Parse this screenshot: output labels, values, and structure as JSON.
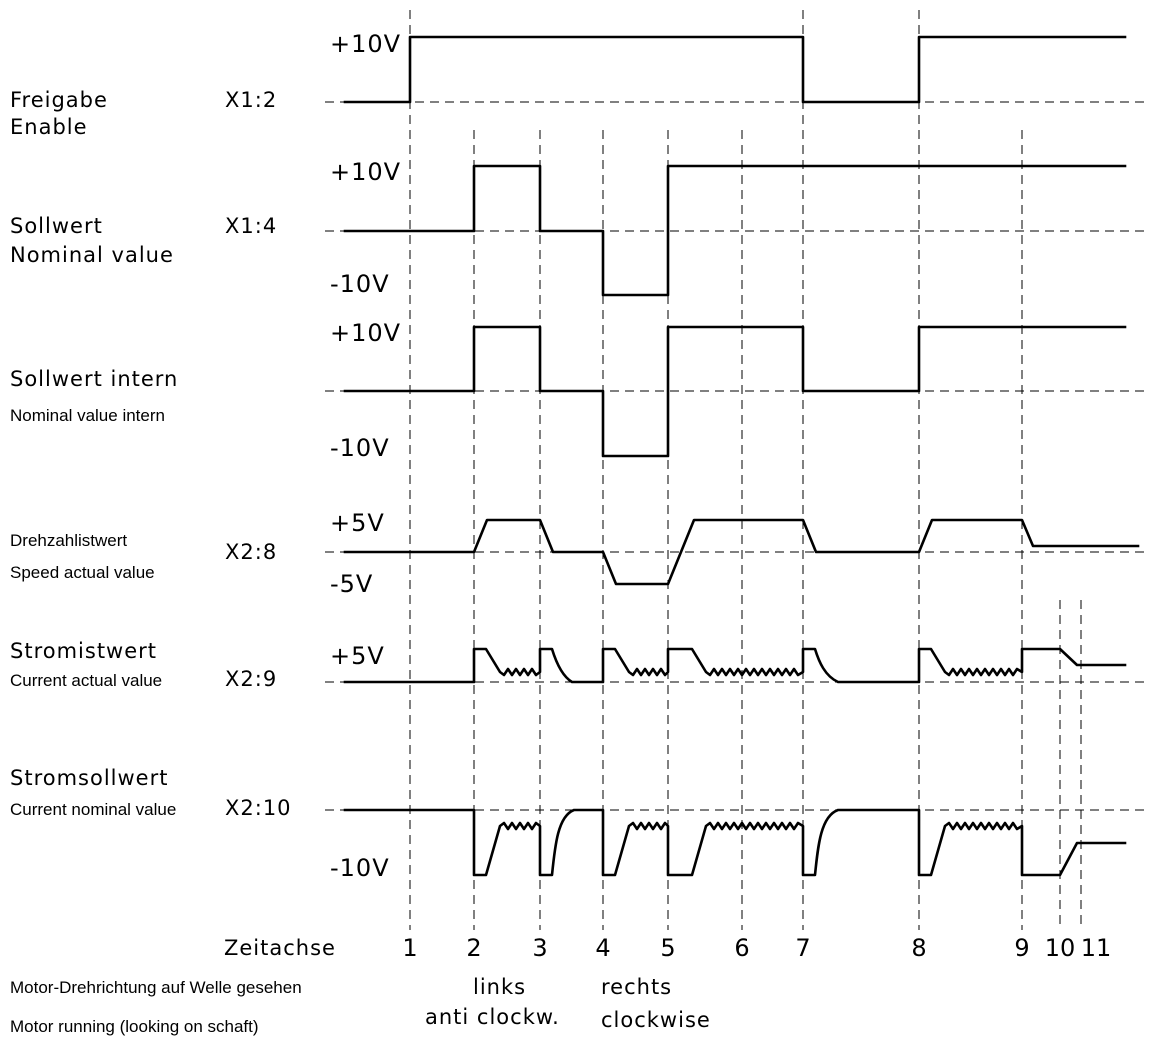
{
  "rows": [
    {
      "label_de": "Freigabe",
      "label_en": "Enable",
      "pin": "X1:2",
      "v_high": "+10V",
      "v_low": ""
    },
    {
      "label_de": "Sollwert",
      "label_en": "Nominal value",
      "pin": "X1:4",
      "v_high": "+10V",
      "v_low": "-10V"
    },
    {
      "label_de": "Sollwert intern",
      "label_en": "Nominal value intern",
      "pin": "",
      "v_high": "+10V",
      "v_low": "-10V"
    },
    {
      "label_de": "Drehzahlistwert",
      "label_en": "Speed actual value",
      "pin": "X2:8",
      "v_high": "+5V",
      "v_low": "-5V"
    },
    {
      "label_de": "Stromistwert",
      "label_en": "Current actual value",
      "pin": "X2:9",
      "v_high": "+5V",
      "v_low": ""
    },
    {
      "label_de": "Stromsollwert",
      "label_en": "Current nominal value",
      "pin": "X2:10",
      "v_high": "",
      "v_low": "-10V"
    }
  ],
  "time_axis": {
    "label": "Zeitachse",
    "ticks": [
      "1",
      "2",
      "3",
      "4",
      "5",
      "6",
      "7",
      "8",
      "9",
      "10",
      "11"
    ]
  },
  "footer": {
    "direction_de": "Motor-Drehrichtung auf Welle gesehen",
    "direction_en": "Motor running (looking on schaft)",
    "left_de": "links",
    "left_en": "anti clockw.",
    "right_de": "rechts",
    "right_en": "clockwise"
  }
}
